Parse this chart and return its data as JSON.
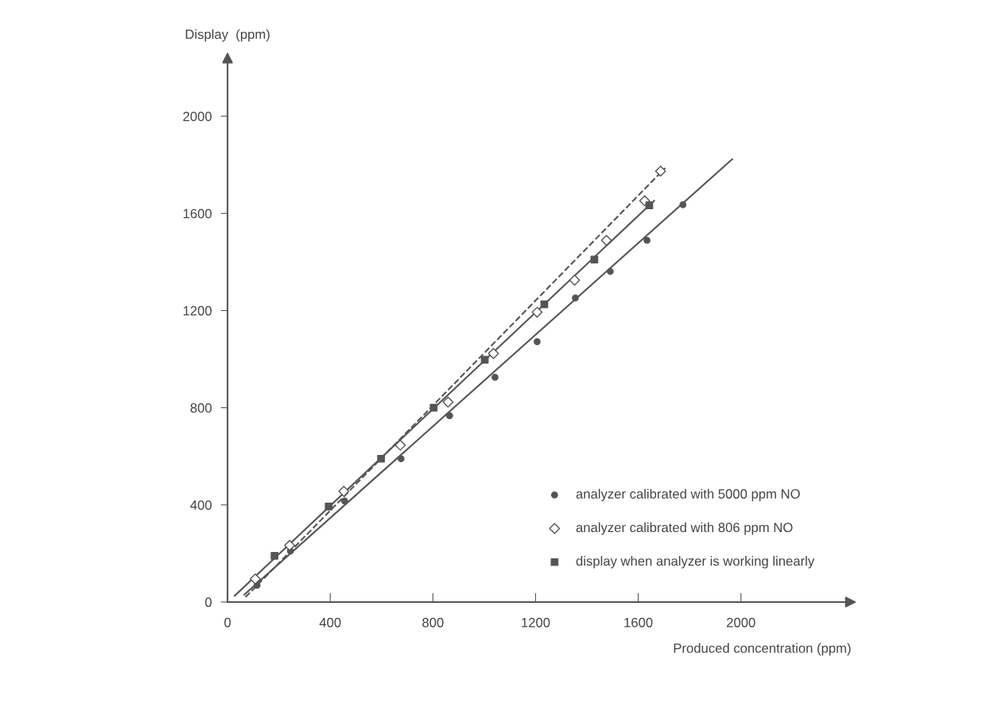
{
  "chart_data": {
    "type": "scatter",
    "xlabel": "Produced concentration (ppm)",
    "ylabel": "Display  (ppm)",
    "xlim": [
      0,
      2430
    ],
    "ylim": [
      0,
      2240
    ],
    "xticks": [
      0,
      400,
      800,
      1200,
      1600,
      2000
    ],
    "yticks": [
      0,
      400,
      800,
      1200,
      1600,
      2000
    ],
    "grid": false,
    "legend": "bottom right",
    "series": [
      {
        "name": "analyzer calibrated with 5000 ppm NO",
        "color": "#555555",
        "marker": "circle",
        "x": [
          115,
          245,
          456,
          676,
          865,
          1042,
          1206,
          1355,
          1491,
          1634,
          1774
        ],
        "values": [
          69,
          210,
          416,
          590,
          767,
          925,
          1072,
          1252,
          1361,
          1489,
          1636
        ]
      },
      {
        "name": "analyzer calibrated with 806 ppm NO",
        "color": "#555555",
        "marker": "diamond",
        "x": [
          108,
          242,
          453,
          673,
          859,
          1036,
          1206,
          1352,
          1476,
          1625,
          1687
        ],
        "values": [
          95,
          233,
          456,
          646,
          823,
          1023,
          1193,
          1325,
          1489,
          1652,
          1774
        ]
      },
      {
        "name": "display when analyzer is working linearly",
        "color": "#555555",
        "marker": "square",
        "x": [
          183,
          394,
          598,
          803,
          1002,
          1234,
          1429,
          1643
        ],
        "values": [
          190,
          393,
          590,
          800,
          997,
          1226,
          1410,
          1633
        ]
      },
      {
        "type": "line",
        "color": "#555555",
        "line_style": "solid",
        "marker": "none",
        "x": [
          65,
          1966
        ],
        "values": [
          30,
          1823
        ]
      },
      {
        "type": "line",
        "color": "#555555",
        "line_style": "solid",
        "marker": "none",
        "x": [
          28,
          1662
        ],
        "values": [
          26,
          1652
        ]
      },
      {
        "type": "line",
        "color": "#555555",
        "line_style": "dashed",
        "marker": "none",
        "x": [
          70,
          1705
        ],
        "values": [
          20,
          1787
        ]
      }
    ]
  }
}
